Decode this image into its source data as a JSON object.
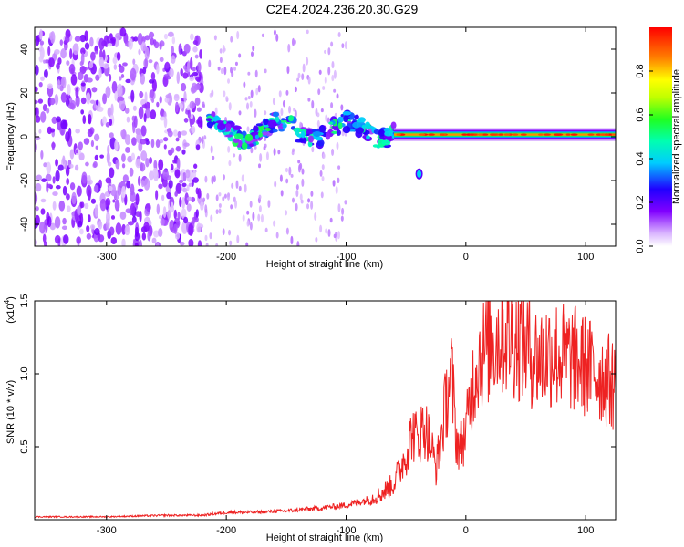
{
  "figure_title": "C2E4.2024.236.20.30.G29",
  "chart_data": [
    {
      "type": "heatmap",
      "title": "",
      "xlabel": "Height of straight line (km)",
      "ylabel": "Frequency (Hz)",
      "xlim": [
        -360,
        125
      ],
      "ylim": [
        -50,
        50
      ],
      "xticks": [
        -300,
        -200,
        -100,
        0,
        100
      ],
      "yticks": [
        -40,
        -20,
        0,
        20,
        40
      ],
      "colorbar": {
        "label": "Normalized spectral amplitude",
        "range": [
          0,
          1
        ],
        "ticks": [
          "0.0",
          "0.2",
          "0.4",
          "0.6",
          "0.8"
        ],
        "colormap": [
          "#ffffff",
          "#cc99ff",
          "#8000ff",
          "#0000ff",
          "#00e5ff",
          "#00ff40",
          "#ffff00",
          "#ff8000",
          "#ff0000"
        ]
      },
      "regions": [
        {
          "x_range": [
            -360,
            -220
          ],
          "freq_range": [
            -50,
            48
          ],
          "amplitude": 0.1,
          "pattern": "scattered noise"
        },
        {
          "x_range": [
            -215,
            -60
          ],
          "freq_center": 3,
          "freq_width": 8,
          "amplitude": 0.4,
          "pattern": "wandering signal"
        },
        {
          "x_range": [
            -60,
            125
          ],
          "freq_center": 1,
          "freq_width": 3,
          "amplitude": 0.85,
          "pattern": "strong narrow line"
        },
        {
          "x_range": [
            -40,
            -38
          ],
          "freq_center": -17,
          "freq_width": 3,
          "amplitude": 0.4,
          "pattern": "isolated blob"
        }
      ]
    },
    {
      "type": "line",
      "title": "",
      "xlabel": "Height of straight line (km)",
      "ylabel": "SNR (10 * v/v)",
      "y_multiplier": "(x10",
      "y_multiplier_exp": "4",
      "xlim": [
        -360,
        125
      ],
      "ylim": [
        0,
        1.5
      ],
      "xticks": [
        -300,
        -200,
        -100,
        0,
        100
      ],
      "yticks": [
        "0.5",
        "1.0",
        "1.5"
      ],
      "series": [
        {
          "color": "#ee2222",
          "x": [
            -360,
            -300,
            -250,
            -220,
            -200,
            -180,
            -150,
            -120,
            -100,
            -80,
            -70,
            -60,
            -55,
            -50,
            -45,
            -40,
            -35,
            -30,
            -25,
            -20,
            -15,
            -12,
            -8,
            -5,
            0,
            5,
            10,
            20,
            30,
            40,
            50,
            60,
            70,
            80,
            90,
            100,
            110,
            120,
            125
          ],
          "y": [
            0.02,
            0.02,
            0.03,
            0.03,
            0.05,
            0.05,
            0.06,
            0.08,
            0.1,
            0.14,
            0.18,
            0.25,
            0.35,
            0.45,
            0.6,
            0.55,
            0.65,
            0.55,
            0.35,
            0.6,
            0.9,
            1.0,
            0.55,
            0.5,
            0.6,
            0.9,
            1.1,
            1.2,
            1.28,
            1.25,
            1.2,
            1.1,
            1.15,
            1.12,
            1.1,
            1.05,
            1.0,
            0.95,
            0.9
          ]
        }
      ]
    }
  ]
}
